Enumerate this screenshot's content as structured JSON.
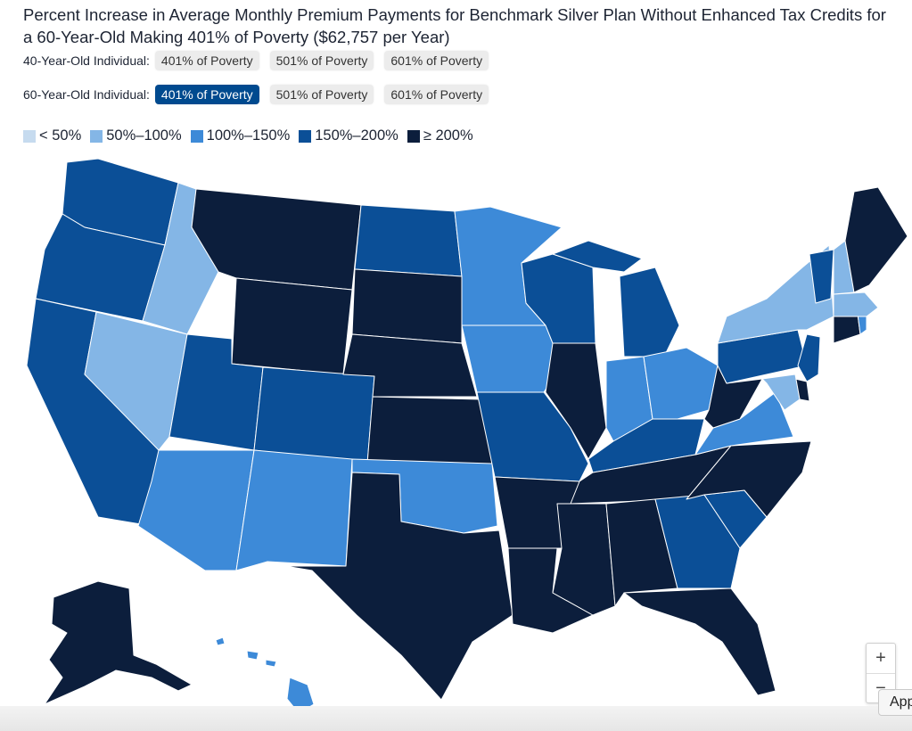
{
  "title": "Percent Increase in Average Monthly Premium Payments for Benchmark Silver Plan Without Enhanced Tax Credits for a 60-Year-Old Making 401% of Poverty ($62,757 per Year)",
  "rows": [
    {
      "label": "40-Year-Old Individual:",
      "options": [
        "401% of Poverty",
        "501% of Poverty",
        "601% of Poverty"
      ],
      "selected": -1
    },
    {
      "label": "60-Year-Old Individual:",
      "options": [
        "401% of Poverty",
        "501% of Poverty",
        "601% of Poverty"
      ],
      "selected": 0
    }
  ],
  "legend": [
    {
      "label": "< 50%",
      "color": "#c6dbef"
    },
    {
      "label": "50%–100%",
      "color": "#84b6e6"
    },
    {
      "label": "100%–150%",
      "color": "#3d8ad8"
    },
    {
      "label": "150%–200%",
      "color": "#0b4f97"
    },
    {
      "label": "≥ 200%",
      "color": "#0c1e3c"
    }
  ],
  "states": {
    "WA": "150%–200%",
    "OR": "150%–200%",
    "CA": "150%–200%",
    "ID": "50%–100%",
    "NV": "50%–100%",
    "MT": "≥ 200%",
    "WY": "≥ 200%",
    "UT": "150%–200%",
    "AZ": "100%–150%",
    "CO": "150%–200%",
    "NM": "100%–150%",
    "ND": "150%–200%",
    "SD": "≥ 200%",
    "NE": "≥ 200%",
    "KS": "≥ 200%",
    "OK": "100%–150%",
    "TX": "≥ 200%",
    "MN": "100%–150%",
    "IA": "100%–150%",
    "MO": "150%–200%",
    "AR": "≥ 200%",
    "LA": "≥ 200%",
    "WI": "150%–200%",
    "MI": "150%–200%",
    "IL": "≥ 200%",
    "IN": "100%–150%",
    "OH": "100%–150%",
    "KY": "150%–200%",
    "TN": "≥ 200%",
    "MS": "≥ 200%",
    "AL": "≥ 200%",
    "GA": "150%–200%",
    "FL": "≥ 200%",
    "SC": "150%–200%",
    "NC": "≥ 200%",
    "VA": "100%–150%",
    "WV": "≥ 200%",
    "MD": "50%–100%",
    "DE": "≥ 200%",
    "NJ": "150%–200%",
    "PA": "150%–200%",
    "NY": "50%–100%",
    "CT": "≥ 200%",
    "RI": "100%–150%",
    "MA": "50%–100%",
    "VT": "150%–200%",
    "NH": "50%–100%",
    "ME": "≥ 200%",
    "AK": "≥ 200%",
    "HI": "100%–150%"
  },
  "controls": {
    "zoom_in": "+",
    "zoom_out": "−",
    "app_label": "App"
  }
}
